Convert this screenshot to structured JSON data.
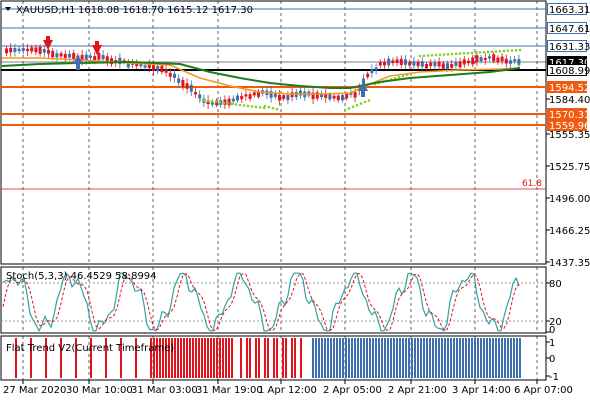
{
  "header": {
    "symbol_label": "XAUUSD,H1",
    "ohlc": "1618.08 1618.70 1615.12 1617.30"
  },
  "price_axis": {
    "ticks": [
      "1584.40",
      "1555.35",
      "1525.75",
      "1496.00",
      "1466.25",
      "1437.35"
    ],
    "tags": [
      {
        "label": "1663.31",
        "color": "#3c6fb0",
        "text_color": "#000000"
      },
      {
        "label": "1647.61",
        "color": "#3c6fb0",
        "text_color": "#000000"
      },
      {
        "label": "1631.33",
        "color": "#3c6fb0",
        "text_color": "#000000"
      },
      {
        "label": "1617.30",
        "color": "#000000",
        "text_color": "#ffffff"
      },
      {
        "label": "1608.99",
        "color": "#ffffff",
        "text_color": "#000000"
      },
      {
        "label": "1594.52",
        "color": "#f15a0e",
        "text_color": "#ffffff"
      },
      {
        "label": "1570.31",
        "color": "#f15a0e",
        "text_color": "#ffffff"
      },
      {
        "label": "1559.96",
        "color": "#f15a0e",
        "text_color": "#ffffff"
      }
    ],
    "fib_label": "61.8"
  },
  "stoch": {
    "label": "Stoch(5,3,3) 46.4529 58.8994",
    "levels": [
      "80",
      "20",
      "0"
    ]
  },
  "trend": {
    "label": "Flat Trend V2(Current Timeframe)",
    "levels": [
      "1",
      "0",
      "-1"
    ]
  },
  "time_axis": {
    "labels": [
      "27 Mar 2020",
      "30 Mar 10:00",
      "31 Mar 03:00",
      "31 Mar 19:00",
      "1 Apr 12:00",
      "2 Apr 05:00",
      "2 Apr 21:00",
      "3 Apr 14:00",
      "6 Apr 07:00"
    ]
  },
  "colors": {
    "bull": "#3c6fb0",
    "bear": "#e0141e",
    "support": "#f15a0e",
    "fib": "#e0141e",
    "ma_fast": "#f39a1e",
    "ma_slow": "#1e7b1e"
  }
}
